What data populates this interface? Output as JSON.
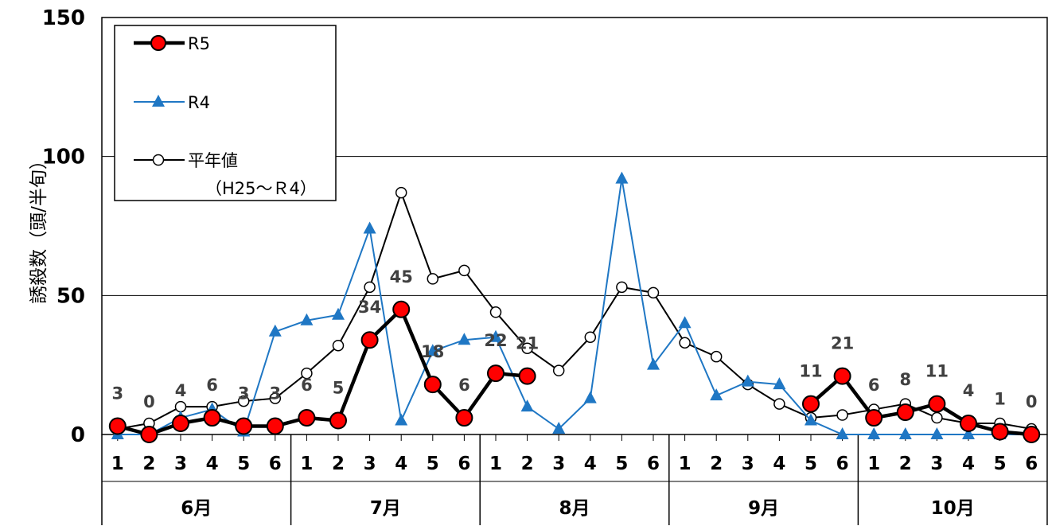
{
  "chart_data": {
    "type": "line",
    "ylabel": "誘殺数（頭/半旬）",
    "ylim": [
      0,
      150
    ],
    "yticks": [
      "0",
      "50",
      "100",
      "150"
    ],
    "grid": "horizontal",
    "legend_position": "top-left",
    "categories": [
      "1",
      "2",
      "3",
      "4",
      "5",
      "6",
      "1",
      "2",
      "3",
      "4",
      "5",
      "6",
      "1",
      "2",
      "3",
      "4",
      "5",
      "6",
      "1",
      "2",
      "3",
      "4",
      "5",
      "6",
      "1",
      "2",
      "3",
      "4",
      "5",
      "6"
    ],
    "months": [
      "6月",
      "7月",
      "8月",
      "9月",
      "10月"
    ],
    "series": [
      {
        "name": "R5",
        "color": "#000000",
        "marker_fill": "#ff0000",
        "values": [
          3,
          0,
          4,
          6,
          3,
          3,
          6,
          5,
          34,
          45,
          18,
          6,
          22,
          21,
          null,
          null,
          null,
          null,
          null,
          null,
          null,
          null,
          11,
          21,
          6,
          8,
          11,
          4,
          1,
          0
        ],
        "segments": [
          [
            0,
            13
          ],
          [
            22,
            29
          ]
        ]
      },
      {
        "name": "R4",
        "color": "#1f77c4",
        "values": [
          0,
          0,
          6,
          9,
          1,
          37,
          41,
          43,
          74,
          5,
          30,
          34,
          35,
          10,
          2,
          13,
          92,
          25,
          40,
          14,
          19,
          18,
          5,
          0,
          0,
          0,
          0,
          0,
          0,
          0
        ]
      },
      {
        "name": "平年値",
        "name_line2": "（H25～Ｒ4）",
        "color": "#000000",
        "values": [
          2,
          4,
          10,
          10,
          12,
          13,
          22,
          32,
          53,
          87,
          56,
          59,
          44,
          31,
          23,
          35,
          53,
          51,
          33,
          28,
          18,
          11,
          6,
          7,
          9,
          11,
          6,
          4,
          4,
          2
        ]
      }
    ],
    "data_labels": [
      "3",
      "0",
      "4",
      "6",
      "3",
      "3",
      "6",
      "5",
      "34",
      "45",
      "18",
      "6",
      "22",
      "21",
      "",
      "",
      "",
      "",
      "",
      "",
      "",
      "",
      "11",
      "21",
      "6",
      "8",
      "11",
      "4",
      "1",
      "0"
    ]
  }
}
